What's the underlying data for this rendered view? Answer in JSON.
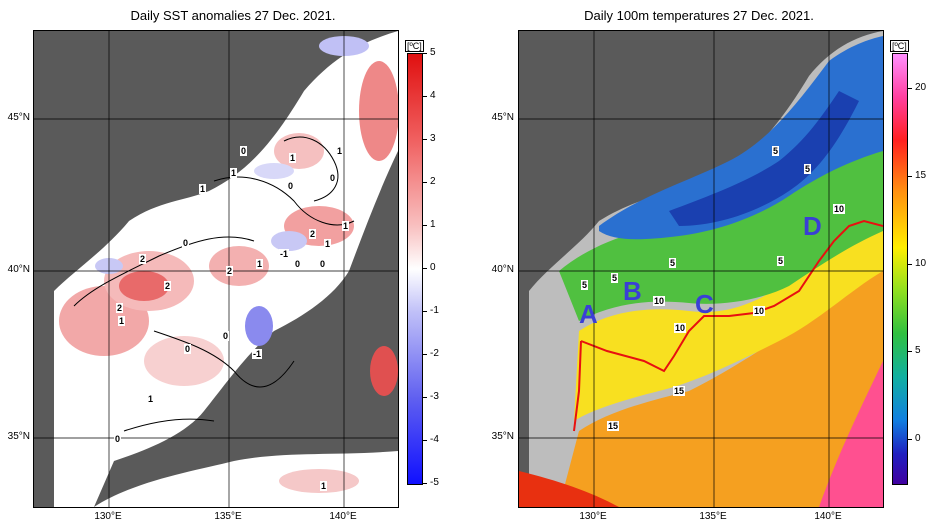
{
  "left_panel": {
    "title": "Daily SST anomalies 27 Dec. 2021.",
    "colorbar": {
      "unit": "[ºC]",
      "ticks": [
        "5",
        "4",
        "3",
        "2",
        "1",
        "0",
        "-1",
        "-2",
        "-3",
        "-4",
        "-5"
      ],
      "colors": {
        "max": "#e02020",
        "mid": "#ffffff",
        "min": "#1a1aff"
      }
    },
    "lat_labels": [
      "45°N",
      "40°N",
      "35°N"
    ],
    "lon_labels": [
      "130°E",
      "135°E",
      "140°E"
    ],
    "contour_labels": [
      "0",
      "1",
      "1",
      "0",
      "1",
      "1",
      "0",
      "1",
      "0",
      "2",
      "1",
      "2",
      "2",
      "2",
      "0",
      "1",
      "-1",
      "0",
      "2",
      "1",
      "0",
      "0",
      "-1",
      "1",
      "0",
      "1"
    ]
  },
  "right_panel": {
    "title": "Daily 100m temperatures 27 Dec. 2021.",
    "colorbar": {
      "unit": "[ºC]",
      "ticks": [
        "20",
        "15",
        "10",
        "5",
        "0"
      ],
      "colors": {
        "max": "#ff80ff",
        "high": "#ff2020",
        "mid": "#ffee00",
        "low": "#30c030",
        "cold": "#1070e0",
        "min": "#3000a0"
      }
    },
    "lat_labels": [
      "45°N",
      "40°N",
      "35°N"
    ],
    "lon_labels": [
      "130°E",
      "135°E",
      "140°E"
    ],
    "contour_labels": [
      "5",
      "5",
      "5",
      "10",
      "5",
      "5",
      "5",
      "10",
      "10",
      "10",
      "15",
      "15"
    ],
    "section_points": [
      "A",
      "B",
      "C",
      "D"
    ],
    "section_line_color": "#e81010"
  }
}
